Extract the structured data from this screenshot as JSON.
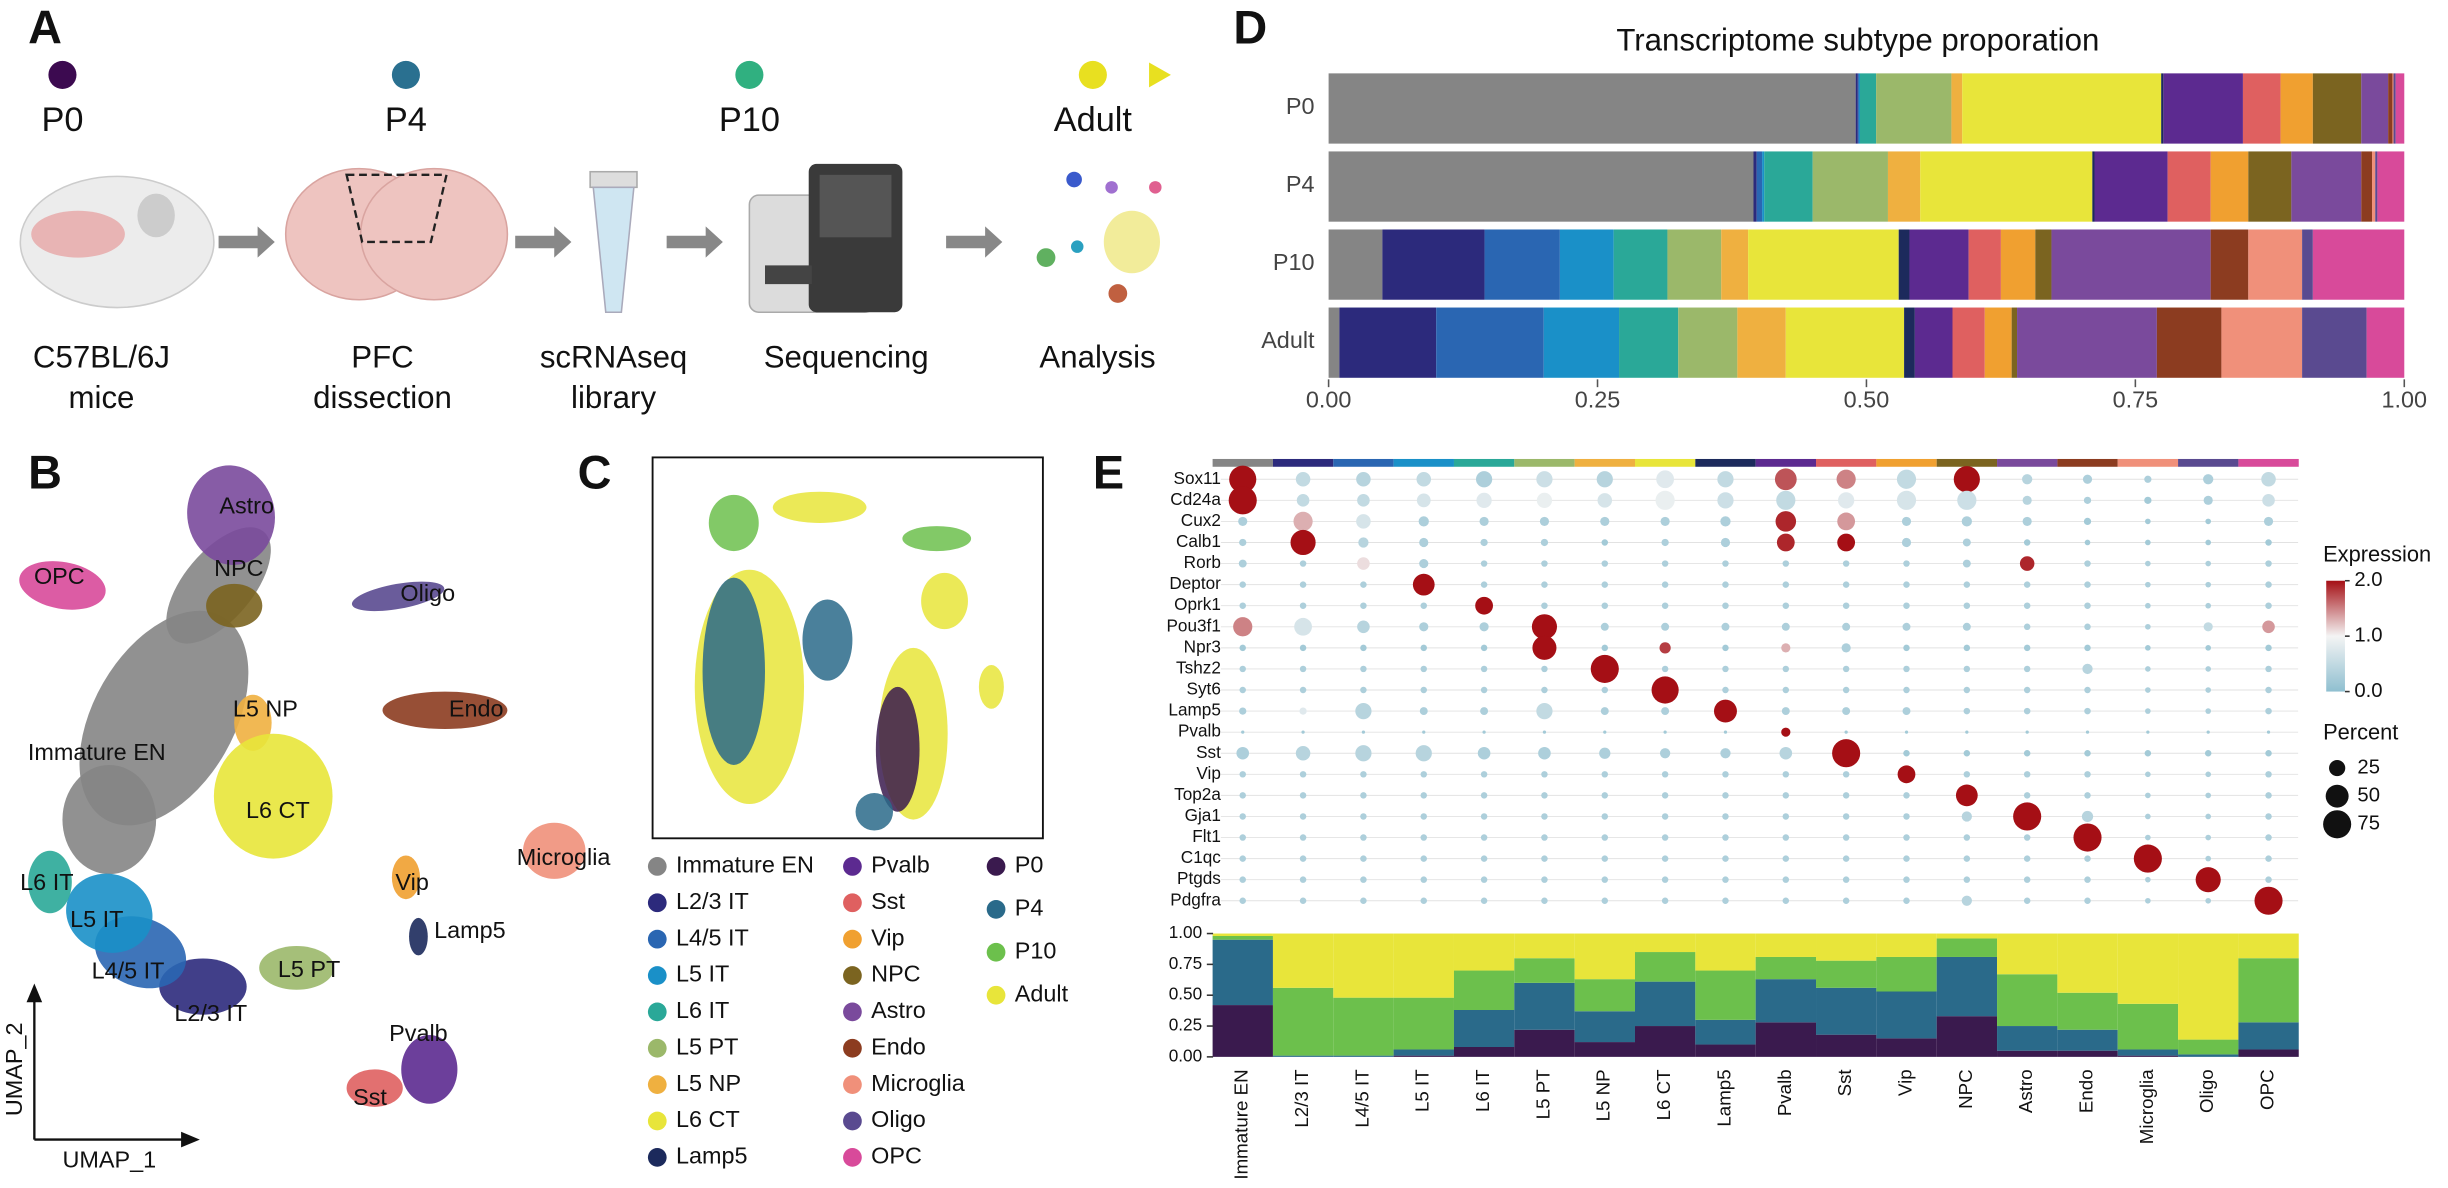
{
  "panel_labels": [
    "A",
    "B",
    "C",
    "D",
    "E"
  ],
  "timeline": {
    "stages": [
      "P0",
      "P4",
      "P10",
      "Adult"
    ],
    "steps": [
      [
        "C57BL/6J",
        "mice"
      ],
      [
        "PFC",
        "dissection"
      ],
      [
        "scRNAseq",
        "library"
      ],
      [
        "Sequencing"
      ],
      [
        "Analysis"
      ]
    ]
  },
  "umap": {
    "x_label": "UMAP_1",
    "y_label": "UMAP_2"
  },
  "chart_data": [
    {
      "type": "stacked-barh",
      "title": "Transcriptome subtype proporation",
      "categories": [
        "P0",
        "P4",
        "P10",
        "Adult"
      ],
      "xlim": [
        0,
        1
      ],
      "xticks": [
        {
          "value": 0,
          "label": "0.00"
        },
        {
          "value": 0.25,
          "label": "0.25"
        },
        {
          "value": 0.5,
          "label": "0.50"
        },
        {
          "value": 0.75,
          "label": "0.75"
        },
        {
          "value": 1,
          "label": "1.00"
        }
      ],
      "series": [
        {
          "name": "Immature EN",
          "color": "#858585",
          "values": [
            0.49,
            0.395,
            0.05,
            0.01
          ]
        },
        {
          "name": "L2/3 IT",
          "color": "#2c2a7c",
          "values": [
            0.002,
            0.003,
            0.095,
            0.09
          ]
        },
        {
          "name": "L4/5 IT",
          "color": "#2a66b2",
          "values": [
            0.001,
            0.005,
            0.07,
            0.1
          ]
        },
        {
          "name": "L5 IT",
          "color": "#1a90c8",
          "values": [
            0.001,
            0.002,
            0.05,
            0.07
          ]
        },
        {
          "name": "L6 IT",
          "color": "#2aa898",
          "values": [
            0.015,
            0.045,
            0.05,
            0.055
          ]
        },
        {
          "name": "L5 PT",
          "color": "#9bb86a",
          "values": [
            0.07,
            0.07,
            0.05,
            0.055
          ]
        },
        {
          "name": "L5 NP",
          "color": "#efb040",
          "values": [
            0.01,
            0.03,
            0.025,
            0.045
          ]
        },
        {
          "name": "L6 CT",
          "color": "#e8e53a",
          "values": [
            0.185,
            0.16,
            0.14,
            0.11
          ]
        },
        {
          "name": "Lamp5",
          "color": "#1c2a5c",
          "values": [
            0.002,
            0.002,
            0.01,
            0.01
          ]
        },
        {
          "name": "Pvalb",
          "color": "#5c2a90",
          "values": [
            0.074,
            0.068,
            0.055,
            0.035
          ]
        },
        {
          "name": "Sst",
          "color": "#df6060",
          "values": [
            0.035,
            0.04,
            0.03,
            0.03
          ]
        },
        {
          "name": "Vip",
          "color": "#f0a030",
          "values": [
            0.03,
            0.035,
            0.032,
            0.025
          ]
        },
        {
          "name": "NPC",
          "color": "#7b6420",
          "values": [
            0.045,
            0.04,
            0.015,
            0.005
          ]
        },
        {
          "name": "Astro",
          "color": "#7a4a9c",
          "values": [
            0.025,
            0.065,
            0.148,
            0.13
          ]
        },
        {
          "name": "Endo",
          "color": "#8c3c20",
          "values": [
            0.004,
            0.01,
            0.035,
            0.06
          ]
        },
        {
          "name": "Microglia",
          "color": "#f0907a",
          "values": [
            0.001,
            0.003,
            0.05,
            0.075
          ]
        },
        {
          "name": "Oligo",
          "color": "#5a4a90",
          "values": [
            0.002,
            0.002,
            0.01,
            0.06
          ]
        },
        {
          "name": "OPC",
          "color": "#d84a9a",
          "values": [
            0.008,
            0.025,
            0.085,
            0.035
          ]
        }
      ]
    },
    {
      "type": "dot",
      "rows": [
        "Sox11",
        "Cd24a",
        "Cux2",
        "Calb1",
        "Rorb",
        "Deptor",
        "Oprk1",
        "Pou3f1",
        "Npr3",
        "Tshz2",
        "Syt6",
        "Lamp5",
        "Pvalb",
        "Sst",
        "Vip",
        "Top2a",
        "Gja1",
        "Flt1",
        "C1qc",
        "Ptgds",
        "Pdgfra"
      ],
      "expression": [
        [
          2.0,
          0.5,
          0.4,
          0.5,
          0.3,
          0.6,
          0.4,
          0.8,
          0.5,
          1.7,
          1.5,
          0.5,
          2.0,
          0.4,
          0.3,
          0.3,
          0.3,
          0.5
        ],
        [
          2.0,
          0.5,
          0.5,
          0.7,
          0.8,
          0.9,
          0.7,
          0.9,
          0.6,
          0.5,
          0.8,
          0.7,
          0.6,
          0.4,
          0.3,
          0.2,
          0.3,
          0.6
        ],
        [
          0.3,
          1.3,
          0.7,
          0.3,
          0.3,
          0.3,
          0.3,
          0.3,
          0.3,
          1.9,
          1.4,
          0.3,
          0.3,
          0.3,
          0.2,
          0.2,
          0.2,
          0.3
        ],
        [
          0.3,
          2.0,
          0.4,
          0.3,
          0.3,
          0.3,
          0.2,
          0.3,
          0.3,
          1.9,
          2.0,
          0.3,
          0.3,
          0.2,
          0.2,
          0.2,
          0.2,
          0.2
        ],
        [
          0.3,
          0.3,
          1.1,
          0.3,
          0.3,
          0.3,
          0.3,
          0.3,
          0.3,
          0.3,
          0.3,
          0.3,
          0.3,
          1.9,
          0.3,
          0.3,
          0.3,
          0.3
        ],
        [
          0.3,
          0.3,
          0.3,
          2.0,
          0.3,
          0.3,
          0.3,
          0.3,
          0.3,
          0.3,
          0.3,
          0.3,
          0.3,
          0.3,
          0.3,
          0.3,
          0.3,
          0.3
        ],
        [
          0.3,
          0.3,
          0.3,
          0.3,
          2.0,
          0.3,
          0.3,
          0.3,
          0.3,
          0.3,
          0.3,
          0.3,
          0.3,
          0.3,
          0.3,
          0.3,
          0.3,
          0.3
        ],
        [
          1.5,
          0.7,
          0.4,
          0.3,
          0.3,
          2.0,
          0.3,
          0.3,
          0.3,
          0.3,
          0.3,
          0.3,
          0.3,
          0.3,
          0.3,
          0.3,
          0.5,
          1.4
        ],
        [
          0.2,
          0.2,
          0.2,
          0.2,
          0.2,
          2.0,
          0.2,
          1.8,
          0.2,
          1.3,
          0.3,
          0.2,
          0.2,
          0.2,
          0.2,
          0.2,
          0.2,
          0.2
        ],
        [
          0.3,
          0.3,
          0.3,
          0.3,
          0.3,
          0.3,
          2.0,
          0.3,
          0.3,
          0.3,
          0.3,
          0.3,
          0.3,
          0.3,
          0.4,
          0.3,
          0.3,
          0.3
        ],
        [
          0.3,
          0.3,
          0.3,
          0.3,
          0.3,
          0.3,
          0.3,
          2.0,
          0.3,
          0.3,
          0.3,
          0.3,
          0.3,
          0.3,
          0.3,
          0.3,
          0.3,
          0.3
        ],
        [
          0.3,
          0.8,
          0.4,
          0.3,
          0.3,
          0.5,
          0.3,
          0.3,
          2.0,
          0.3,
          0.3,
          0.3,
          0.3,
          0.3,
          0.3,
          0.3,
          0.3,
          0.3
        ],
        [
          0.2,
          0.2,
          0.2,
          0.2,
          0.2,
          0.2,
          0.2,
          0.2,
          0.2,
          2.0,
          0.2,
          0.2,
          0.2,
          0.2,
          0.2,
          0.2,
          0.2,
          0.2
        ],
        [
          0.3,
          0.4,
          0.4,
          0.4,
          0.3,
          0.3,
          0.3,
          0.3,
          0.3,
          0.4,
          2.0,
          0.2,
          0.2,
          0.2,
          0.2,
          0.2,
          0.2,
          0.2
        ],
        [
          0.3,
          0.3,
          0.3,
          0.3,
          0.3,
          0.3,
          0.3,
          0.3,
          0.3,
          0.3,
          0.3,
          2.0,
          0.3,
          0.3,
          0.3,
          0.3,
          0.3,
          0.3
        ],
        [
          0.3,
          0.3,
          0.3,
          0.3,
          0.3,
          0.3,
          0.3,
          0.3,
          0.3,
          0.3,
          0.3,
          0.3,
          2.0,
          0.3,
          0.3,
          0.3,
          0.3,
          0.3
        ],
        [
          0.3,
          0.3,
          0.3,
          0.3,
          0.3,
          0.3,
          0.3,
          0.3,
          0.3,
          0.3,
          0.3,
          0.3,
          0.4,
          2.0,
          0.4,
          0.3,
          0.3,
          0.3
        ],
        [
          0.3,
          0.3,
          0.3,
          0.3,
          0.3,
          0.3,
          0.3,
          0.3,
          0.3,
          0.3,
          0.3,
          0.3,
          0.3,
          0.3,
          2.0,
          0.3,
          0.3,
          0.3
        ],
        [
          0.3,
          0.3,
          0.3,
          0.3,
          0.3,
          0.3,
          0.3,
          0.3,
          0.3,
          0.3,
          0.3,
          0.3,
          0.3,
          0.3,
          0.3,
          2.0,
          0.3,
          0.3
        ],
        [
          0.3,
          0.3,
          0.3,
          0.3,
          0.3,
          0.3,
          0.3,
          0.3,
          0.3,
          0.3,
          0.3,
          0.3,
          0.3,
          0.3,
          0.3,
          0.3,
          2.0,
          0.3
        ],
        [
          0.3,
          0.3,
          0.3,
          0.3,
          0.3,
          0.3,
          0.3,
          0.3,
          0.3,
          0.3,
          0.3,
          0.3,
          0.4,
          0.3,
          0.3,
          0.3,
          0.3,
          2.0
        ]
      ],
      "percent": [
        [
          70,
          20,
          20,
          20,
          25,
          25,
          25,
          30,
          25,
          45,
          35,
          35,
          65,
          10,
          8,
          5,
          10,
          20
        ],
        [
          75,
          15,
          15,
          18,
          22,
          22,
          20,
          35,
          25,
          35,
          25,
          35,
          35,
          8,
          5,
          5,
          8,
          15
        ],
        [
          8,
          35,
          20,
          10,
          8,
          8,
          8,
          8,
          10,
          40,
          30,
          8,
          10,
          8,
          5,
          3,
          3,
          8
        ],
        [
          5,
          60,
          10,
          8,
          5,
          5,
          4,
          5,
          8,
          30,
          30,
          8,
          6,
          4,
          3,
          3,
          3,
          4
        ],
        [
          6,
          4,
          15,
          8,
          4,
          4,
          4,
          4,
          4,
          4,
          4,
          4,
          6,
          20,
          4,
          3,
          3,
          4
        ],
        [
          4,
          4,
          4,
          45,
          4,
          4,
          4,
          4,
          4,
          4,
          4,
          4,
          4,
          4,
          4,
          3,
          3,
          4
        ],
        [
          4,
          4,
          4,
          4,
          30,
          4,
          4,
          4,
          4,
          4,
          4,
          4,
          4,
          4,
          4,
          3,
          3,
          4
        ],
        [
          35,
          30,
          15,
          8,
          8,
          60,
          6,
          6,
          6,
          6,
          6,
          6,
          6,
          4,
          4,
          3,
          8,
          15
        ],
        [
          4,
          4,
          4,
          4,
          4,
          55,
          4,
          12,
          4,
          8,
          8,
          4,
          4,
          4,
          4,
          3,
          3,
          4
        ],
        [
          4,
          4,
          4,
          4,
          4,
          4,
          75,
          4,
          4,
          4,
          4,
          4,
          4,
          4,
          10,
          3,
          3,
          4
        ],
        [
          4,
          4,
          4,
          4,
          4,
          4,
          4,
          70,
          4,
          4,
          4,
          4,
          4,
          4,
          4,
          3,
          3,
          4
        ],
        [
          5,
          5,
          25,
          6,
          6,
          25,
          6,
          6,
          50,
          6,
          6,
          6,
          4,
          4,
          4,
          3,
          3,
          4
        ],
        [
          1,
          1,
          1,
          1,
          1,
          1,
          1,
          1,
          1,
          8,
          1,
          1,
          1,
          1,
          1,
          1,
          1,
          1
        ],
        [
          15,
          20,
          25,
          25,
          15,
          15,
          12,
          10,
          10,
          15,
          75,
          4,
          4,
          4,
          4,
          4,
          4,
          4
        ],
        [
          4,
          4,
          4,
          4,
          4,
          4,
          4,
          4,
          4,
          4,
          4,
          30,
          4,
          4,
          4,
          3,
          3,
          4
        ],
        [
          4,
          4,
          4,
          4,
          4,
          4,
          4,
          4,
          4,
          4,
          4,
          4,
          45,
          4,
          4,
          3,
          3,
          4
        ],
        [
          4,
          4,
          4,
          4,
          4,
          4,
          4,
          4,
          4,
          4,
          4,
          4,
          10,
          75,
          12,
          3,
          3,
          4
        ],
        [
          4,
          4,
          4,
          4,
          4,
          4,
          4,
          4,
          4,
          4,
          4,
          4,
          4,
          4,
          75,
          3,
          3,
          4
        ],
        [
          4,
          4,
          4,
          4,
          4,
          4,
          4,
          4,
          4,
          4,
          4,
          4,
          4,
          4,
          4,
          75,
          3,
          4
        ],
        [
          4,
          4,
          4,
          4,
          4,
          4,
          4,
          4,
          4,
          4,
          4,
          4,
          4,
          4,
          4,
          3,
          60,
          4
        ],
        [
          4,
          4,
          4,
          4,
          4,
          4,
          4,
          4,
          4,
          4,
          4,
          4,
          10,
          4,
          4,
          3,
          3,
          75
        ]
      ],
      "color_legend_title": "Expression",
      "colorbar": {
        "lim": [
          0,
          2
        ],
        "colors": [
          "#8fbfd0",
          "#f4f4f4",
          "#a50f15"
        ],
        "ticks": [
          {
            "value": 2,
            "label": "2.0"
          },
          {
            "value": 1,
            "label": "1.0"
          },
          {
            "value": 0,
            "label": "0.0"
          }
        ]
      },
      "size_legend_title": "Percent",
      "size_legend": [
        25,
        50,
        75
      ]
    },
    {
      "type": "stacked-bar",
      "categories": [
        "Immature EN",
        "L2/3 IT",
        "L4/5 IT",
        "L5 IT",
        "L6 IT",
        "L5 PT",
        "L5 NP",
        "L6 CT",
        "Lamp5",
        "Pvalb",
        "Sst",
        "Vip",
        "NPC",
        "Astro",
        "Endo",
        "Microglia",
        "Oligo",
        "OPC"
      ],
      "ylim": [
        0,
        1
      ],
      "yticks": [
        {
          "value": 0,
          "label": "0.00"
        },
        {
          "value": 0.25,
          "label": "0.25"
        },
        {
          "value": 0.5,
          "label": "0.50"
        },
        {
          "value": 0.75,
          "label": "0.75"
        },
        {
          "value": 1,
          "label": "1.00"
        }
      ],
      "series": [
        {
          "name": "P0",
          "color": "#3a1a4e",
          "values": [
            0.42,
            0.0,
            0.0,
            0.01,
            0.08,
            0.22,
            0.12,
            0.25,
            0.1,
            0.28,
            0.18,
            0.15,
            0.33,
            0.05,
            0.05,
            0.01,
            0.0,
            0.06
          ]
        },
        {
          "name": "P4",
          "color": "#2a6a8a",
          "values": [
            0.53,
            0.01,
            0.01,
            0.05,
            0.3,
            0.38,
            0.25,
            0.36,
            0.2,
            0.35,
            0.38,
            0.38,
            0.48,
            0.2,
            0.17,
            0.05,
            0.02,
            0.22
          ]
        },
        {
          "name": "P10",
          "color": "#6cc04c",
          "values": [
            0.03,
            0.55,
            0.47,
            0.42,
            0.32,
            0.2,
            0.26,
            0.24,
            0.4,
            0.18,
            0.22,
            0.28,
            0.15,
            0.42,
            0.3,
            0.37,
            0.12,
            0.52
          ]
        },
        {
          "name": "Adult",
          "color": "#e8e53a",
          "values": [
            0.02,
            0.44,
            0.52,
            0.52,
            0.3,
            0.2,
            0.37,
            0.15,
            0.3,
            0.19,
            0.22,
            0.19,
            0.04,
            0.33,
            0.48,
            0.57,
            0.86,
            0.2
          ]
        }
      ]
    }
  ]
}
